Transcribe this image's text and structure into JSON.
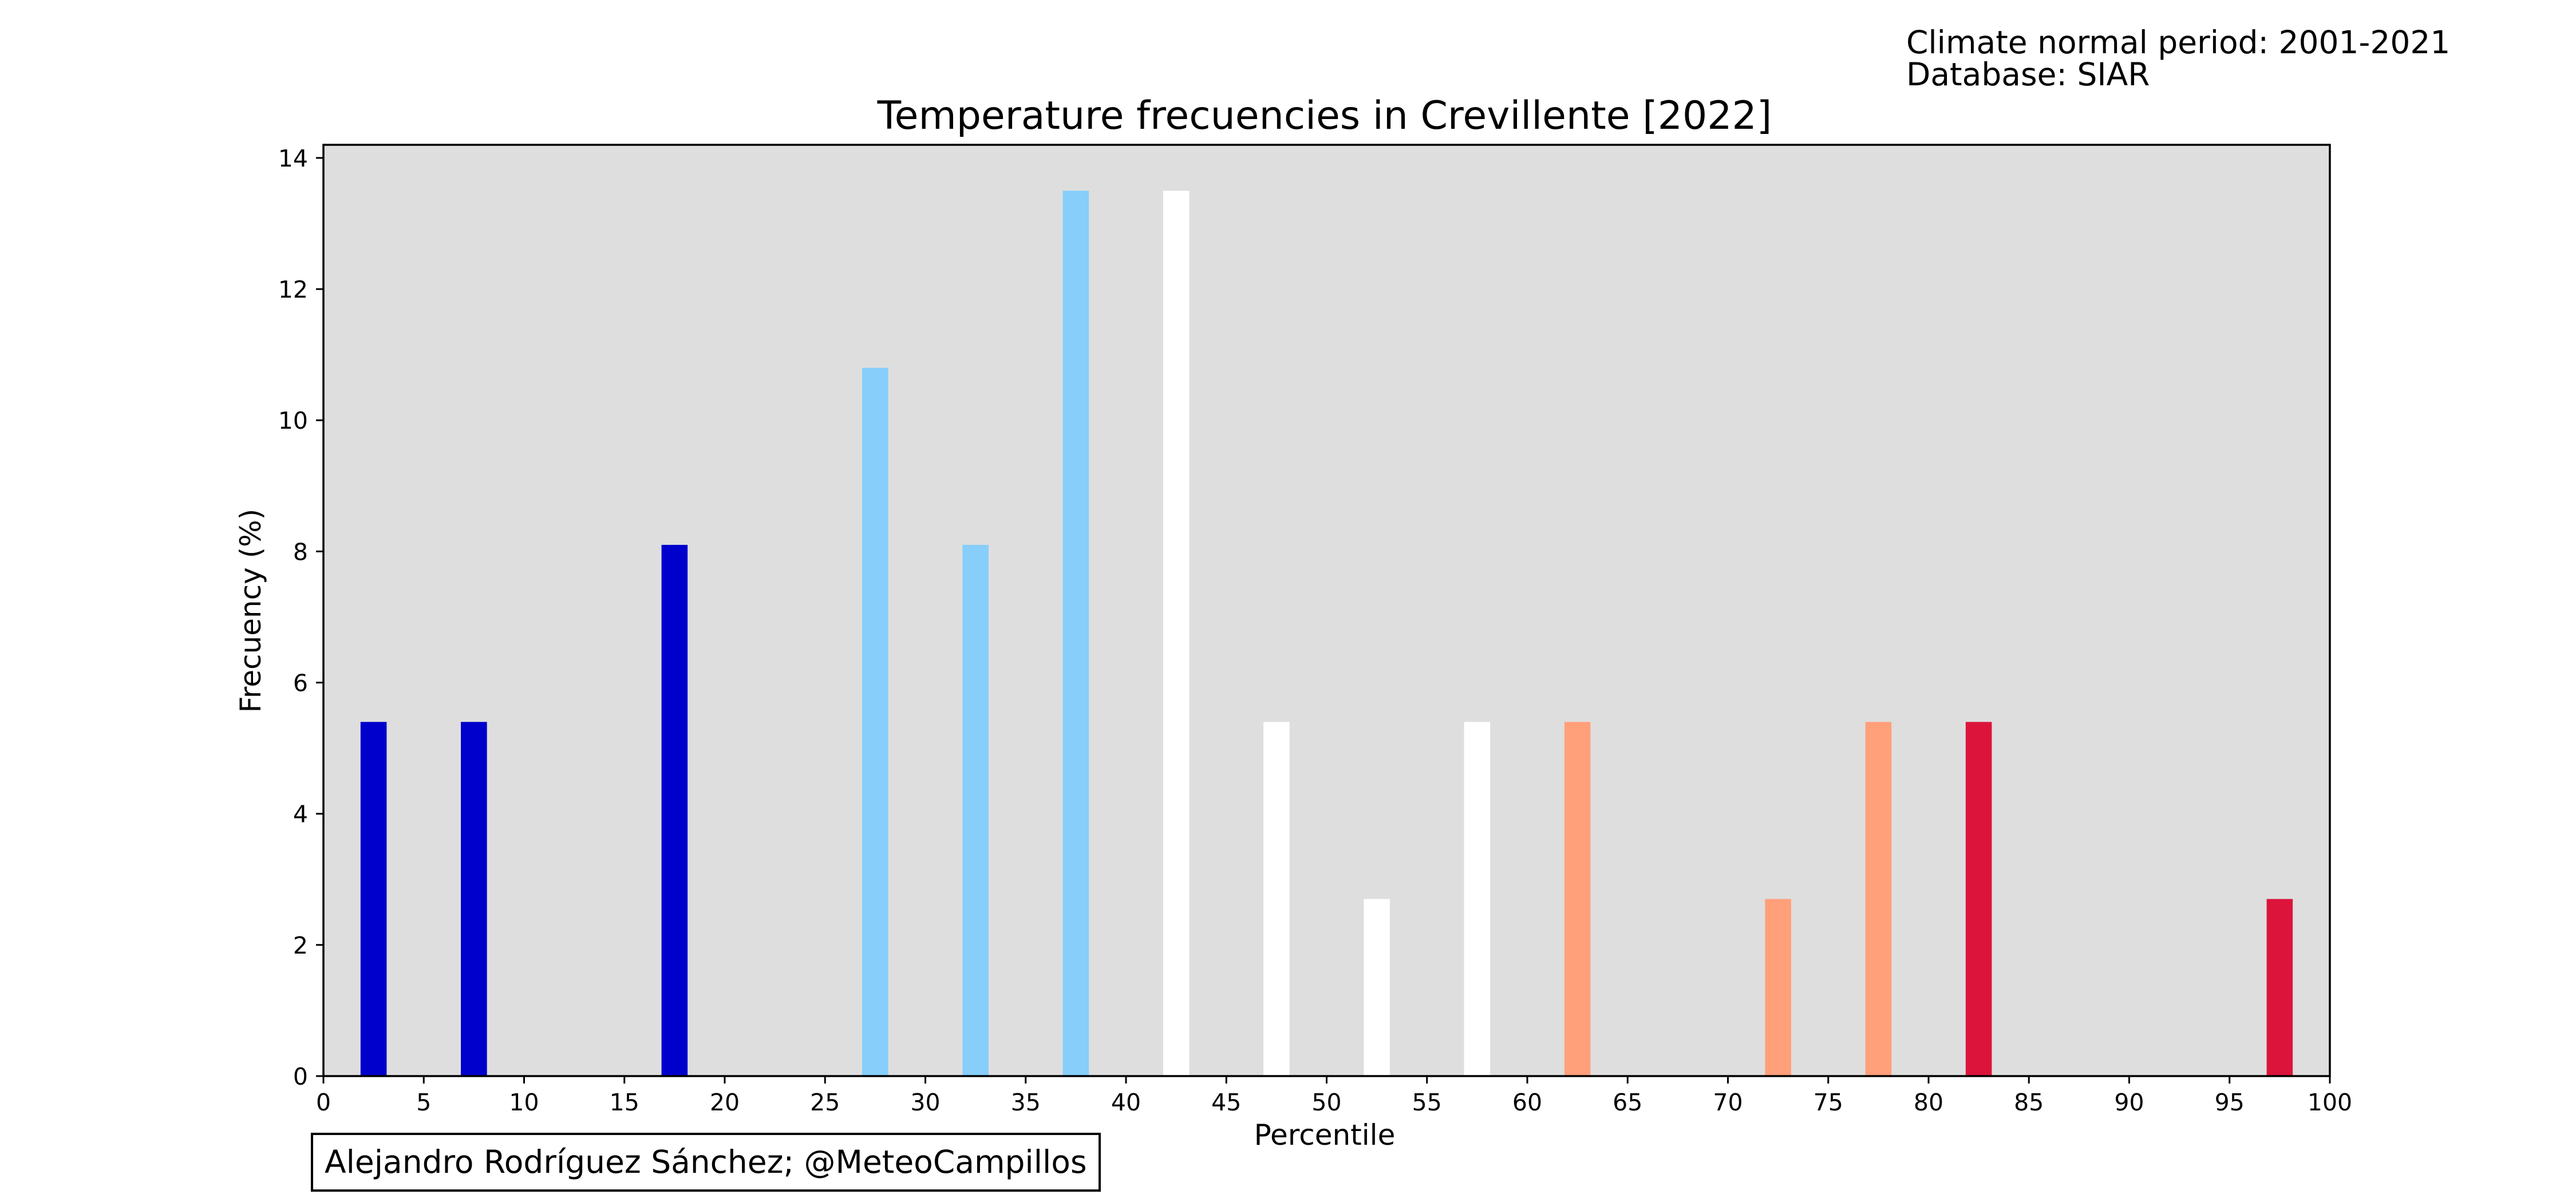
{
  "notes": {
    "climate_normal": "Climate normal period: 2001-2021",
    "database": "Database: SIAR"
  },
  "credit": "Alejandro Rodríguez Sánchez; @MeteoCampillos",
  "chart_data": {
    "type": "bar",
    "title": "Temperature frecuencies in Crevillente [2022]",
    "xlabel": "Percentile",
    "ylabel": "Frecuency (%)",
    "xlim": [
      0,
      100
    ],
    "ylim": [
      0,
      14.2
    ],
    "xticks": [
      0,
      5,
      10,
      15,
      20,
      25,
      30,
      35,
      40,
      45,
      50,
      55,
      60,
      65,
      70,
      75,
      80,
      85,
      90,
      95,
      100
    ],
    "yticks": [
      0,
      2,
      4,
      6,
      8,
      10,
      12,
      14
    ],
    "grid": false,
    "background_color": "#dedede",
    "bar_width": 1.3,
    "x": [
      2.5,
      7.5,
      12.5,
      17.5,
      22.5,
      27.5,
      32.5,
      37.5,
      42.5,
      47.5,
      52.5,
      57.5,
      62.5,
      67.5,
      72.5,
      77.5,
      82.5,
      87.5,
      92.5,
      97.5
    ],
    "values": [
      5.4,
      5.4,
      0,
      8.1,
      0,
      10.8,
      8.1,
      13.5,
      13.5,
      5.4,
      2.7,
      5.4,
      5.4,
      0,
      2.7,
      5.4,
      5.4,
      0,
      0,
      2.7
    ],
    "colors": [
      "#0000cd",
      "#0000cd",
      "#0000cd",
      "#0000cd",
      "#87cefa",
      "#87cefa",
      "#87cefa",
      "#87cefa",
      "#ffffff",
      "#ffffff",
      "#ffffff",
      "#ffffff",
      "#ffa07a",
      "#ffa07a",
      "#ffa07a",
      "#ffa07a",
      "#dc143c",
      "#dc143c",
      "#dc143c",
      "#dc143c"
    ]
  }
}
